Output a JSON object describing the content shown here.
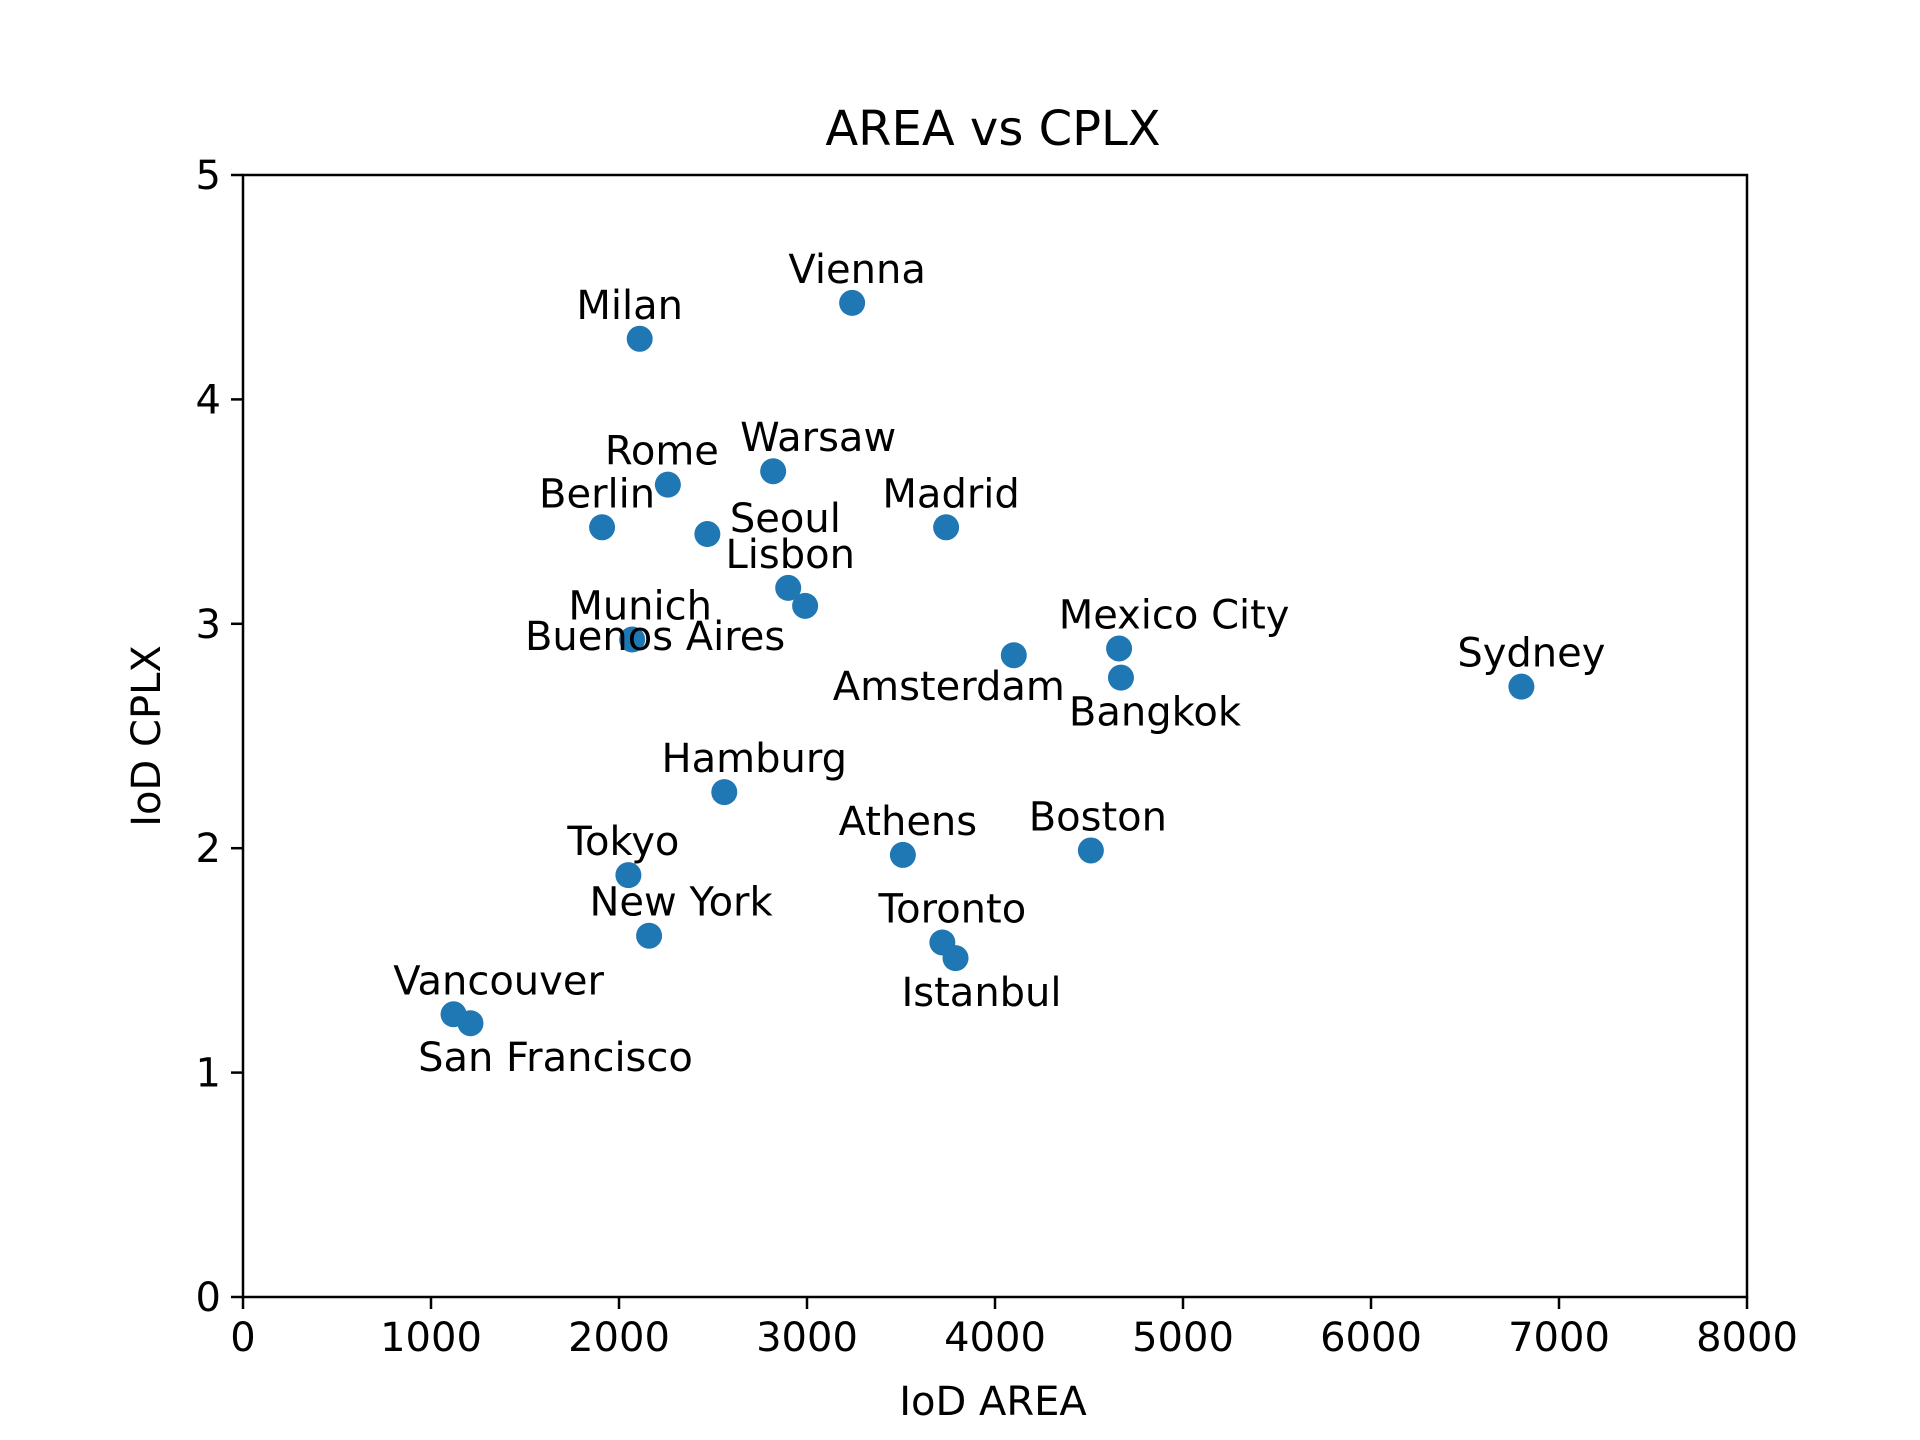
{
  "chart_data": {
    "type": "scatter",
    "title": "AREA vs CPLX",
    "xlabel": "IoD AREA",
    "ylabel": "IoD CPLX",
    "xlim": [
      0,
      8000
    ],
    "ylim": [
      0,
      5
    ],
    "xticks": [
      "0",
      "1000",
      "2000",
      "3000",
      "4000",
      "5000",
      "6000",
      "7000",
      "8000"
    ],
    "yticks": [
      "0",
      "1",
      "2",
      "3",
      "4",
      "5"
    ],
    "grid": false,
    "point_color": "#1f77b4",
    "points": [
      {
        "label": "Vienna",
        "x": 3240,
        "y": 4.43,
        "label_pos": "above"
      },
      {
        "label": "Milan",
        "x": 2110,
        "y": 4.27,
        "label_pos": "above"
      },
      {
        "label": "Warsaw",
        "x": 2820,
        "y": 3.68,
        "label_pos": "above-right"
      },
      {
        "label": "Rome",
        "x": 2260,
        "y": 3.62,
        "label_pos": "above"
      },
      {
        "label": "Berlin",
        "x": 1910,
        "y": 3.43,
        "label_pos": "above-left"
      },
      {
        "label": "Madrid",
        "x": 3740,
        "y": 3.43,
        "label_pos": "above"
      },
      {
        "label": "Seoul",
        "x": 2470,
        "y": 3.4,
        "label_pos": "right"
      },
      {
        "label": "Lisbon",
        "x": 2900,
        "y": 3.16,
        "label_pos": "above"
      },
      {
        "label": "Buenos Aires",
        "x": 2990,
        "y": 3.08,
        "label_pos": "below-right"
      },
      {
        "label": "Munich",
        "x": 2070,
        "y": 2.93,
        "label_pos": "above"
      },
      {
        "label": "Mexico City",
        "x": 4660,
        "y": 2.89,
        "label_pos": "above-right"
      },
      {
        "label": "Amsterdam",
        "x": 4100,
        "y": 2.86,
        "label_pos": "below-left"
      },
      {
        "label": "Bangkok",
        "x": 4670,
        "y": 2.76,
        "label_pos": "below"
      },
      {
        "label": "Sydney",
        "x": 6800,
        "y": 2.72,
        "label_pos": "above"
      },
      {
        "label": "Hamburg",
        "x": 2560,
        "y": 2.25,
        "label_pos": "above"
      },
      {
        "label": "Boston",
        "x": 4510,
        "y": 1.99,
        "label_pos": "above"
      },
      {
        "label": "Athens",
        "x": 3510,
        "y": 1.97,
        "label_pos": "above"
      },
      {
        "label": "Tokyo",
        "x": 2050,
        "y": 1.88,
        "label_pos": "above"
      },
      {
        "label": "New York",
        "x": 2160,
        "y": 1.61,
        "label_pos": "above"
      },
      {
        "label": "Toronto",
        "x": 3720,
        "y": 1.58,
        "label_pos": "above"
      },
      {
        "label": "Istanbul",
        "x": 3790,
        "y": 1.51,
        "label_pos": "below"
      },
      {
        "label": "Vancouver",
        "x": 1120,
        "y": 1.26,
        "label_pos": "above"
      },
      {
        "label": "San Francisco",
        "x": 1210,
        "y": 1.22,
        "label_pos": "below"
      }
    ]
  }
}
